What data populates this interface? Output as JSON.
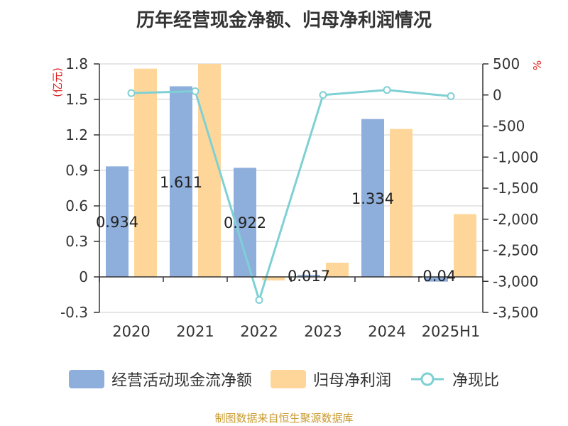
{
  "title": "历年经营现金净额、归母净利润情况",
  "source_note": "制图数据来自恒生聚源数据库",
  "chart_data": {
    "type": "bar",
    "title": "历年经营现金净额、归母净利润情况",
    "categories": [
      "2020",
      "2021",
      "2022",
      "2023",
      "2024",
      "2025H1"
    ],
    "left_axis": {
      "unit": "(亿元)",
      "range": [
        -0.3,
        1.8
      ],
      "ticks": [
        1.8,
        1.5,
        1.2,
        0.9,
        0.6,
        0.3,
        0,
        -0.3
      ],
      "tick_labels": [
        "1.8",
        "1.5",
        "1.2",
        "0.9",
        "0.6",
        "0.3",
        "0",
        "-0.3"
      ]
    },
    "right_axis": {
      "unit": "%",
      "range": [
        -3500,
        500
      ],
      "ticks": [
        500,
        0,
        -500,
        -1000,
        -1500,
        -2000,
        -2500,
        -3000,
        -3500
      ],
      "tick_labels": [
        "500",
        "0",
        "-500",
        "-1,000",
        "-1,500",
        "-2,000",
        "-2,500",
        "-3,000",
        "-3,500"
      ]
    },
    "series": [
      {
        "name": "经营活动现金流净额",
        "kind": "bar",
        "axis": "left",
        "color": "#8eaedb",
        "values": [
          0.934,
          1.611,
          0.922,
          0.017,
          1.334,
          -0.04
        ],
        "labels": [
          "0.934",
          "1.611",
          "0.922",
          "0.017",
          "1.334",
          "-0.04"
        ]
      },
      {
        "name": "归母净利润",
        "kind": "bar",
        "axis": "left",
        "color": "#ffd699",
        "values": [
          1.76,
          1.8,
          -0.03,
          0.12,
          1.25,
          0.53
        ]
      },
      {
        "name": "净现比",
        "kind": "line",
        "axis": "right",
        "color": "#7fd0d4",
        "values": [
          30,
          60,
          -3300,
          0,
          80,
          -20
        ]
      }
    ]
  }
}
